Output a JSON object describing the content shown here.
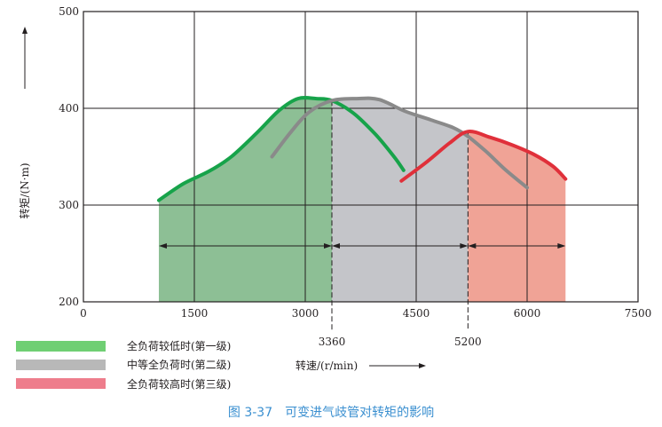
{
  "chart_data": {
    "type": "line",
    "title": "图 3-37　可变进气歧管对转矩的影响",
    "xlabel": "转速/(r/min)",
    "ylabel": "转矩/(N·m)",
    "xlim": [
      0,
      7500
    ],
    "ylim": [
      200,
      500
    ],
    "x_ticks": [
      "0",
      "1500",
      "3000",
      "4500",
      "6000",
      "7500"
    ],
    "x_tick_values": [
      0,
      1500,
      3000,
      4500,
      6000,
      7500
    ],
    "y_ticks": [
      "200",
      "300",
      "400",
      "500"
    ],
    "y_tick_values": [
      200,
      300,
      400,
      500
    ],
    "grid": true,
    "legend_position": "bottom-left",
    "markers": [
      {
        "label": "3360",
        "x": 3360
      },
      {
        "label": "5200",
        "x": 5200
      }
    ],
    "series": [
      {
        "name": "全负荷较低时(第一级)",
        "color": "#17a34a",
        "fill": "#8dbf95",
        "fill_range": [
          1020,
          3360
        ],
        "points": [
          [
            1020,
            305
          ],
          [
            1350,
            322
          ],
          [
            1700,
            335
          ],
          [
            2000,
            350
          ],
          [
            2350,
            375
          ],
          [
            2650,
            398
          ],
          [
            2900,
            410
          ],
          [
            3150,
            410
          ],
          [
            3360,
            408
          ],
          [
            3650,
            395
          ],
          [
            3950,
            373
          ],
          [
            4200,
            350
          ],
          [
            4330,
            336
          ]
        ]
      },
      {
        "name": "中等全负荷时(第二级)",
        "color": "#8a8a8a",
        "fill": "#c4c5c9",
        "fill_range": [
          3360,
          5200
        ],
        "points": [
          [
            2550,
            350
          ],
          [
            2800,
            375
          ],
          [
            3050,
            396
          ],
          [
            3360,
            408
          ],
          [
            3700,
            410
          ],
          [
            4000,
            409
          ],
          [
            4350,
            397
          ],
          [
            4700,
            388
          ],
          [
            5000,
            380
          ],
          [
            5200,
            371
          ],
          [
            5450,
            355
          ],
          [
            5700,
            337
          ],
          [
            6000,
            318
          ]
        ]
      },
      {
        "name": "全负荷较高时(第三级)",
        "color": "#e0303a",
        "fill": "#f0a396",
        "fill_range": [
          5200,
          6520
        ],
        "points": [
          [
            4300,
            325
          ],
          [
            4650,
            345
          ],
          [
            4950,
            364
          ],
          [
            5200,
            376
          ],
          [
            5500,
            370
          ],
          [
            5800,
            362
          ],
          [
            6100,
            352
          ],
          [
            6350,
            340
          ],
          [
            6520,
            327
          ]
        ]
      }
    ]
  },
  "legend": [
    {
      "label": "全负荷较低时(第一级)",
      "color": "#6fcf73"
    },
    {
      "label": "中等全负荷时(第二级)",
      "color": "#b8b8b8"
    },
    {
      "label": "全负荷较高时(第三级)",
      "color": "#ee7d8c"
    }
  ],
  "caption": "图 3-37　可变进气歧管对转矩的影响"
}
